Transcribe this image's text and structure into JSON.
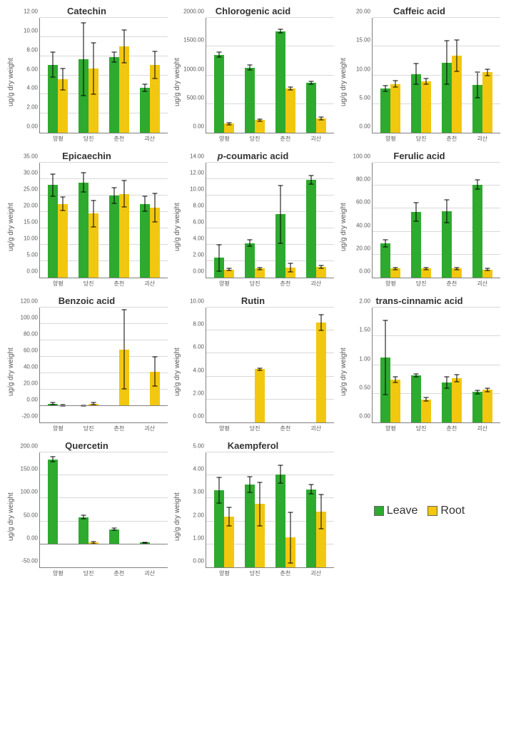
{
  "colors": {
    "leave": "#2eaa2e",
    "root": "#f2c70f",
    "grid": "#d9d9d9",
    "axis": "#808080"
  },
  "categories": [
    "양평",
    "당진",
    "춘천",
    "괴산"
  ],
  "legend": {
    "leave": "Leave",
    "root": "Root"
  },
  "ylabel": "ug/g dry weight",
  "charts": [
    {
      "title": "Catechin",
      "ymin": 0,
      "ymax": 12,
      "ystep": 2,
      "decimals": 2,
      "leave": [
        7.1,
        7.7,
        7.9,
        4.7
      ],
      "root": [
        5.6,
        6.7,
        9.0,
        7.1
      ],
      "leave_err": [
        1.3,
        3.8,
        0.5,
        0.4
      ],
      "root_err": [
        1.1,
        2.7,
        1.7,
        1.4
      ]
    },
    {
      "title": "Chlorogenic acid",
      "ymin": 0,
      "ymax": 2000,
      "ystep": 500,
      "decimals": 2,
      "leave": [
        1360,
        1135,
        1770,
        870
      ],
      "root": [
        160,
        220,
        770,
        250
      ],
      "leave_err": [
        40,
        40,
        30,
        30
      ],
      "root_err": [
        20,
        20,
        20,
        20
      ]
    },
    {
      "title": "Caffeic acid",
      "ymin": 0,
      "ymax": 20,
      "ystep": 5,
      "decimals": 2,
      "leave": [
        7.7,
        10.2,
        12.2,
        8.3
      ],
      "root": [
        8.5,
        9.0,
        13.4,
        10.5
      ],
      "leave_err": [
        0.5,
        1.8,
        3.8,
        2.2
      ],
      "root_err": [
        0.6,
        0.5,
        2.7,
        0.6
      ]
    },
    {
      "title": "Epicaechin",
      "ymin": 0,
      "ymax": 35,
      "ystep": 5,
      "decimals": 2,
      "leave": [
        28.2,
        29.0,
        25.0,
        22.5
      ],
      "root": [
        22.5,
        19.5,
        25.5,
        21.3
      ],
      "leave_err": [
        3.4,
        3.0,
        2.3,
        2.2
      ],
      "root_err": [
        2.0,
        4.0,
        4.0,
        4.3
      ]
    },
    {
      "title": "p-coumaric acid",
      "title_italic_prefix": "p",
      "ymin": 0,
      "ymax": 14,
      "ystep": 2,
      "decimals": 2,
      "leave": [
        2.4,
        4.2,
        7.7,
        11.9
      ],
      "root": [
        1.0,
        1.1,
        1.2,
        1.3
      ],
      "leave_err": [
        1.6,
        0.4,
        3.5,
        0.5
      ],
      "root_err": [
        0.1,
        0.1,
        0.5,
        0.2
      ]
    },
    {
      "title": "Ferulic acid",
      "ymin": 0,
      "ymax": 100,
      "ystep": 20,
      "decimals": 2,
      "leave": [
        30,
        57,
        58,
        81
      ],
      "root": [
        8,
        8,
        8,
        7
      ],
      "leave_err": [
        3,
        8,
        10,
        4
      ],
      "root_err": [
        1,
        1,
        1,
        1
      ]
    },
    {
      "title": "Benzoic acid",
      "ymin": -20,
      "ymax": 120,
      "ystep": 20,
      "decimals": 2,
      "leave": [
        3.0,
        0.5,
        0,
        0
      ],
      "root": [
        1.0,
        3.0,
        69,
        42
      ],
      "leave_err": [
        1,
        0.5,
        0,
        0
      ],
      "root_err": [
        1,
        1,
        48,
        18
      ]
    },
    {
      "title": "Rutin",
      "ymin": 0,
      "ymax": 10,
      "ystep": 2,
      "decimals": 2,
      "leave": [
        0,
        0,
        0,
        0
      ],
      "root": [
        0,
        4.65,
        0,
        8.7
      ],
      "leave_err": [
        0,
        0,
        0,
        0
      ],
      "root_err": [
        0,
        0.1,
        0,
        0.7
      ]
    },
    {
      "title": "trans-cinnamic acid",
      "ymin": 0,
      "ymax": 2,
      "ystep": 0.5,
      "decimals": 2,
      "leave": [
        1.13,
        0.82,
        0.7,
        0.53
      ],
      "root": [
        0.74,
        0.4,
        0.77,
        0.57
      ],
      "leave_err": [
        0.65,
        0.03,
        0.1,
        0.03
      ],
      "root_err": [
        0.05,
        0.03,
        0.06,
        0.03
      ]
    },
    {
      "title": "Quercetin",
      "ymin": -50,
      "ymax": 200,
      "ystep": 50,
      "decimals": 2,
      "leave": [
        185,
        59,
        33,
        4
      ],
      "root": [
        0,
        4,
        0,
        0
      ],
      "leave_err": [
        5,
        4,
        3,
        1
      ],
      "root_err": [
        0,
        2,
        0,
        0
      ]
    },
    {
      "title": "Kaempferol",
      "ymin": 0,
      "ymax": 5,
      "ystep": 1,
      "decimals": 2,
      "leave": [
        3.35,
        3.6,
        4.05,
        3.4
      ],
      "root": [
        2.2,
        2.75,
        1.3,
        2.42
      ],
      "leave_err": [
        0.55,
        0.35,
        0.4,
        0.2
      ],
      "root_err": [
        0.4,
        0.95,
        1.1,
        0.75
      ]
    }
  ]
}
